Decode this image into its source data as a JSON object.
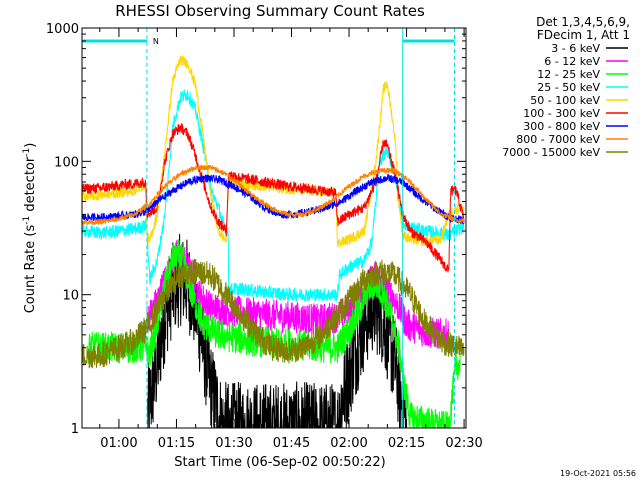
{
  "chart_data": {
    "type": "line",
    "title": "RHESSI Observing Summary Count Rates",
    "xlabel": "Start Time (06-Sep-02 00:50:22)",
    "ylabel_prefix": "Count Rate (s",
    "ylabel_sup1": "-1",
    "ylabel_mid": " detector",
    "ylabel_sup2": "-1",
    "ylabel_suffix": ")",
    "y_scale": "log",
    "xlim_min": [
      50.37,
      150.5
    ],
    "ylim": [
      1,
      1000
    ],
    "x_ticks": [
      {
        "min": 60,
        "label": "01:00"
      },
      {
        "min": 75,
        "label": "01:15"
      },
      {
        "min": 90,
        "label": "01:30"
      },
      {
        "min": 105,
        "label": "01:45"
      },
      {
        "min": 120,
        "label": "02:00"
      },
      {
        "min": 135,
        "label": "02:15"
      },
      {
        "min": 150,
        "label": "02:30"
      }
    ],
    "y_ticks": [
      {
        "value": 1,
        "label": "1"
      },
      {
        "value": 10,
        "label": "10"
      },
      {
        "value": 100,
        "label": "100"
      },
      {
        "value": 1000,
        "label": "1000"
      }
    ],
    "legend_header": [
      "Det 1,3,4,5,6,9,",
      "FDecim 1, Att 1"
    ],
    "legend_position": "right",
    "attenuator_label": "N",
    "night_bars_min": [
      [
        50.37,
        67.3
      ],
      [
        134.0,
        147.5
      ]
    ],
    "boundaries_solid_min": [
      134.0
    ],
    "boundaries_dashed_min": [
      67.3,
      147.5
    ],
    "timestamp": "19-Oct-2021 05:56",
    "series": [
      {
        "name": "3 - 6 keV",
        "color": "#000000",
        "noise": 0.35,
        "lo": 1,
        "points": [
          [
            67.5,
            1.3
          ],
          [
            68.5,
            1.8
          ],
          [
            70,
            3
          ],
          [
            72,
            7
          ],
          [
            74,
            11
          ],
          [
            76,
            13
          ],
          [
            78,
            12
          ],
          [
            80,
            8
          ],
          [
            82,
            4
          ],
          [
            84,
            2
          ],
          [
            86,
            1.3
          ],
          [
            87,
            1
          ],
          [
            117,
            1
          ],
          [
            118,
            1.6
          ],
          [
            120,
            2.5
          ],
          [
            122,
            4
          ],
          [
            124,
            6
          ],
          [
            126,
            8
          ],
          [
            128,
            7.5
          ],
          [
            130,
            5
          ],
          [
            132,
            3
          ],
          [
            134,
            1.5
          ],
          [
            135,
            1
          ]
        ]
      },
      {
        "name": "6 - 12 keV",
        "color": "#ff00ff",
        "noise": 0.12,
        "points": [
          [
            67.3,
            6.5
          ],
          [
            70,
            9
          ],
          [
            72,
            13
          ],
          [
            74,
            18
          ],
          [
            75.5,
            20
          ],
          [
            77,
            18
          ],
          [
            79,
            14
          ],
          [
            81,
            10
          ],
          [
            84,
            8
          ],
          [
            90,
            7.5
          ],
          [
            100,
            7
          ],
          [
            112,
            6.5
          ],
          [
            117,
            6.8
          ],
          [
            120,
            8
          ],
          [
            123,
            10
          ],
          [
            125,
            12
          ],
          [
            127,
            14
          ],
          [
            129,
            12
          ],
          [
            131,
            10
          ],
          [
            133,
            8
          ],
          [
            135,
            6
          ],
          [
            140,
            5.2
          ],
          [
            146,
            5
          ]
        ]
      },
      {
        "name": "12 - 25 keV",
        "color": "#00ff00",
        "noise": 0.12,
        "points": [
          [
            52,
            4
          ],
          [
            66,
            4
          ],
          [
            67.3,
            4
          ],
          [
            68,
            3.5
          ],
          [
            70,
            6
          ],
          [
            72,
            12
          ],
          [
            74,
            18
          ],
          [
            75.5,
            20
          ],
          [
            77,
            17
          ],
          [
            79,
            10
          ],
          [
            82,
            6
          ],
          [
            86,
            5
          ],
          [
            95,
            4.5
          ],
          [
            105,
            4.2
          ],
          [
            115,
            4
          ],
          [
            117,
            4
          ],
          [
            119,
            5
          ],
          [
            121,
            6
          ],
          [
            123,
            8
          ],
          [
            125,
            11
          ],
          [
            127,
            12
          ],
          [
            129,
            10
          ],
          [
            131,
            7
          ],
          [
            133,
            4
          ],
          [
            134.5,
            2
          ],
          [
            136,
            1.2
          ],
          [
            146,
            1
          ],
          [
            147,
            1.8
          ],
          [
            148,
            3
          ],
          [
            149,
            3
          ]
        ]
      },
      {
        "name": "25 - 50 keV",
        "color": "#00ffff",
        "noise": 0.05,
        "points": [
          [
            50.37,
            30
          ],
          [
            55,
            29
          ],
          [
            60,
            30
          ],
          [
            64,
            31
          ],
          [
            67,
            33
          ],
          [
            67.3,
            30
          ],
          [
            68,
            13
          ],
          [
            70,
            18
          ],
          [
            72,
            40
          ],
          [
            74,
            180
          ],
          [
            76,
            300
          ],
          [
            78,
            320
          ],
          [
            80,
            240
          ],
          [
            82,
            130
          ],
          [
            84,
            60
          ],
          [
            86,
            45
          ],
          [
            87,
            35
          ],
          [
            88.5,
            30
          ],
          [
            88.6,
            11
          ],
          [
            92,
            11
          ],
          [
            98,
            10.5
          ],
          [
            104,
            10
          ],
          [
            110,
            10
          ],
          [
            117,
            10
          ],
          [
            117.5,
            14
          ],
          [
            120,
            16
          ],
          [
            124,
            18
          ],
          [
            126,
            25
          ],
          [
            128,
            100
          ],
          [
            130,
            120
          ],
          [
            132,
            80
          ],
          [
            133,
            50
          ],
          [
            134,
            35
          ],
          [
            136,
            32
          ],
          [
            140,
            30
          ],
          [
            146,
            28
          ],
          [
            148,
            30
          ],
          [
            150,
            33
          ]
        ]
      },
      {
        "name": "50 - 100 keV",
        "color": "#ffd700",
        "noise": 0.04,
        "points": [
          [
            50.37,
            55
          ],
          [
            55,
            56
          ],
          [
            60,
            58
          ],
          [
            64,
            60
          ],
          [
            66,
            65
          ],
          [
            67,
            68
          ],
          [
            67.3,
            28
          ],
          [
            68,
            25
          ],
          [
            70,
            40
          ],
          [
            72,
            120
          ],
          [
            74,
            400
          ],
          [
            76,
            580
          ],
          [
            78,
            540
          ],
          [
            80,
            370
          ],
          [
            82,
            150
          ],
          [
            84,
            55
          ],
          [
            86,
            30
          ],
          [
            88,
            25
          ],
          [
            88.6,
            72
          ],
          [
            92,
            68
          ],
          [
            98,
            65
          ],
          [
            104,
            62
          ],
          [
            110,
            60
          ],
          [
            116.5,
            58
          ],
          [
            117,
            24
          ],
          [
            120,
            26
          ],
          [
            124,
            30
          ],
          [
            127,
            100
          ],
          [
            129,
            350
          ],
          [
            130,
            380
          ],
          [
            132,
            150
          ],
          [
            133,
            50
          ],
          [
            134,
            28
          ],
          [
            136,
            26
          ],
          [
            140,
            25
          ],
          [
            144,
            26
          ],
          [
            146,
            40
          ],
          [
            148,
            44
          ],
          [
            150,
            45
          ]
        ]
      },
      {
        "name": "100 - 300 keV",
        "color": "#ff0000",
        "noise": 0.04,
        "points": [
          [
            50.37,
            62
          ],
          [
            55,
            63
          ],
          [
            60,
            66
          ],
          [
            64,
            68
          ],
          [
            67,
            70
          ],
          [
            67.3,
            40
          ],
          [
            70,
            45
          ],
          [
            72,
            100
          ],
          [
            74,
            160
          ],
          [
            76,
            180
          ],
          [
            78,
            160
          ],
          [
            80,
            110
          ],
          [
            82,
            70
          ],
          [
            84,
            45
          ],
          [
            86,
            35
          ],
          [
            88,
            30
          ],
          [
            88.6,
            80
          ],
          [
            92,
            75
          ],
          [
            98,
            70
          ],
          [
            104,
            65
          ],
          [
            110,
            62
          ],
          [
            116.5,
            58
          ],
          [
            117,
            35
          ],
          [
            120,
            40
          ],
          [
            124,
            45
          ],
          [
            127,
            70
          ],
          [
            129,
            140
          ],
          [
            130,
            130
          ],
          [
            132,
            80
          ],
          [
            134,
            40
          ],
          [
            136,
            30
          ],
          [
            140,
            25
          ],
          [
            144,
            18
          ],
          [
            146,
            15
          ],
          [
            146.5,
            60
          ],
          [
            148,
            60
          ],
          [
            150,
            36
          ]
        ]
      },
      {
        "name": "300 - 800 keV",
        "color": "#0000ff",
        "noise": 0.03,
        "points": [
          [
            50.37,
            38
          ],
          [
            55,
            38
          ],
          [
            60,
            39
          ],
          [
            64,
            40
          ],
          [
            67.3,
            42
          ],
          [
            70,
            50
          ],
          [
            74,
            60
          ],
          [
            78,
            70
          ],
          [
            82,
            75
          ],
          [
            86,
            73
          ],
          [
            90,
            65
          ],
          [
            94,
            55
          ],
          [
            98,
            45
          ],
          [
            102,
            40
          ],
          [
            106,
            40
          ],
          [
            110,
            42
          ],
          [
            114,
            45
          ],
          [
            118,
            50
          ],
          [
            122,
            60
          ],
          [
            126,
            70
          ],
          [
            130,
            75
          ],
          [
            134,
            70
          ],
          [
            138,
            55
          ],
          [
            142,
            45
          ],
          [
            146,
            38
          ],
          [
            150,
            36
          ]
        ]
      },
      {
        "name": "800 - 7000 keV",
        "color": "#ff8000",
        "noise": 0.02,
        "points": [
          [
            50.37,
            35
          ],
          [
            55,
            35
          ],
          [
            60,
            37
          ],
          [
            64,
            40
          ],
          [
            68,
            48
          ],
          [
            72,
            65
          ],
          [
            76,
            80
          ],
          [
            80,
            90
          ],
          [
            84,
            90
          ],
          [
            88,
            80
          ],
          [
            92,
            65
          ],
          [
            96,
            52
          ],
          [
            100,
            44
          ],
          [
            104,
            40
          ],
          [
            108,
            40
          ],
          [
            112,
            44
          ],
          [
            116,
            52
          ],
          [
            120,
            65
          ],
          [
            124,
            78
          ],
          [
            128,
            85
          ],
          [
            132,
            85
          ],
          [
            136,
            70
          ],
          [
            140,
            52
          ],
          [
            144,
            40
          ],
          [
            148,
            36
          ],
          [
            150,
            36
          ]
        ]
      },
      {
        "name": "7000 - 15000 keV",
        "color": "#808000",
        "noise": 0.1,
        "points": [
          [
            50.37,
            3.5
          ],
          [
            55,
            3.5
          ],
          [
            60,
            4
          ],
          [
            64,
            4.5
          ],
          [
            68,
            6
          ],
          [
            72,
            10
          ],
          [
            76,
            14
          ],
          [
            80,
            15
          ],
          [
            84,
            14
          ],
          [
            88,
            10
          ],
          [
            92,
            7
          ],
          [
            96,
            5
          ],
          [
            100,
            4
          ],
          [
            104,
            3.8
          ],
          [
            108,
            4
          ],
          [
            112,
            4.8
          ],
          [
            116,
            6.5
          ],
          [
            120,
            9
          ],
          [
            124,
            13
          ],
          [
            128,
            15
          ],
          [
            132,
            14
          ],
          [
            136,
            10
          ],
          [
            140,
            6
          ],
          [
            144,
            4.5
          ],
          [
            148,
            4
          ],
          [
            150,
            3.8
          ]
        ]
      }
    ]
  }
}
